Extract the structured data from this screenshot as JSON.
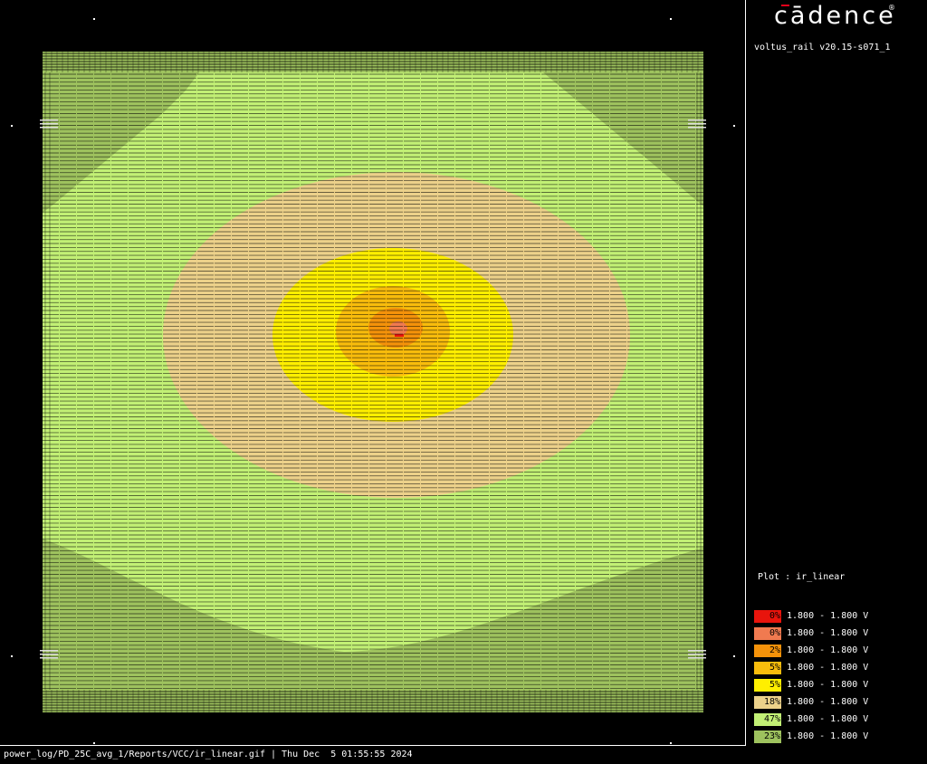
{
  "brand": {
    "logo_text": "cādence",
    "registered": "®"
  },
  "version": "voltus_rail v20.15-s071_1",
  "plot_label": "Plot : ir_linear",
  "legend": [
    {
      "pct": "0%",
      "range": "1.800 - 1.800 V",
      "color": "#e8140c"
    },
    {
      "pct": "0%",
      "range": "1.800 - 1.800 V",
      "color": "#f07a50"
    },
    {
      "pct": "2%",
      "range": "1.800 - 1.800 V",
      "color": "#f4920a"
    },
    {
      "pct": "5%",
      "range": "1.800 - 1.800 V",
      "color": "#f8bc0c"
    },
    {
      "pct": "5%",
      "range": "1.800 - 1.800 V",
      "color": "#ffef00"
    },
    {
      "pct": "18%",
      "range": "1.800 - 1.800 V",
      "color": "#ecd18a"
    },
    {
      "pct": "47%",
      "range": "1.800 - 1.800 V",
      "color": "#c2f075"
    },
    {
      "pct": "23%",
      "range": "1.800 - 1.800 V",
      "color": "#9ec25e"
    }
  ],
  "footer": "power_log/PD_25C_avg_1/Reports/VCC/ir_linear.gif | Thu Dec  5 01:55:55 2024"
}
